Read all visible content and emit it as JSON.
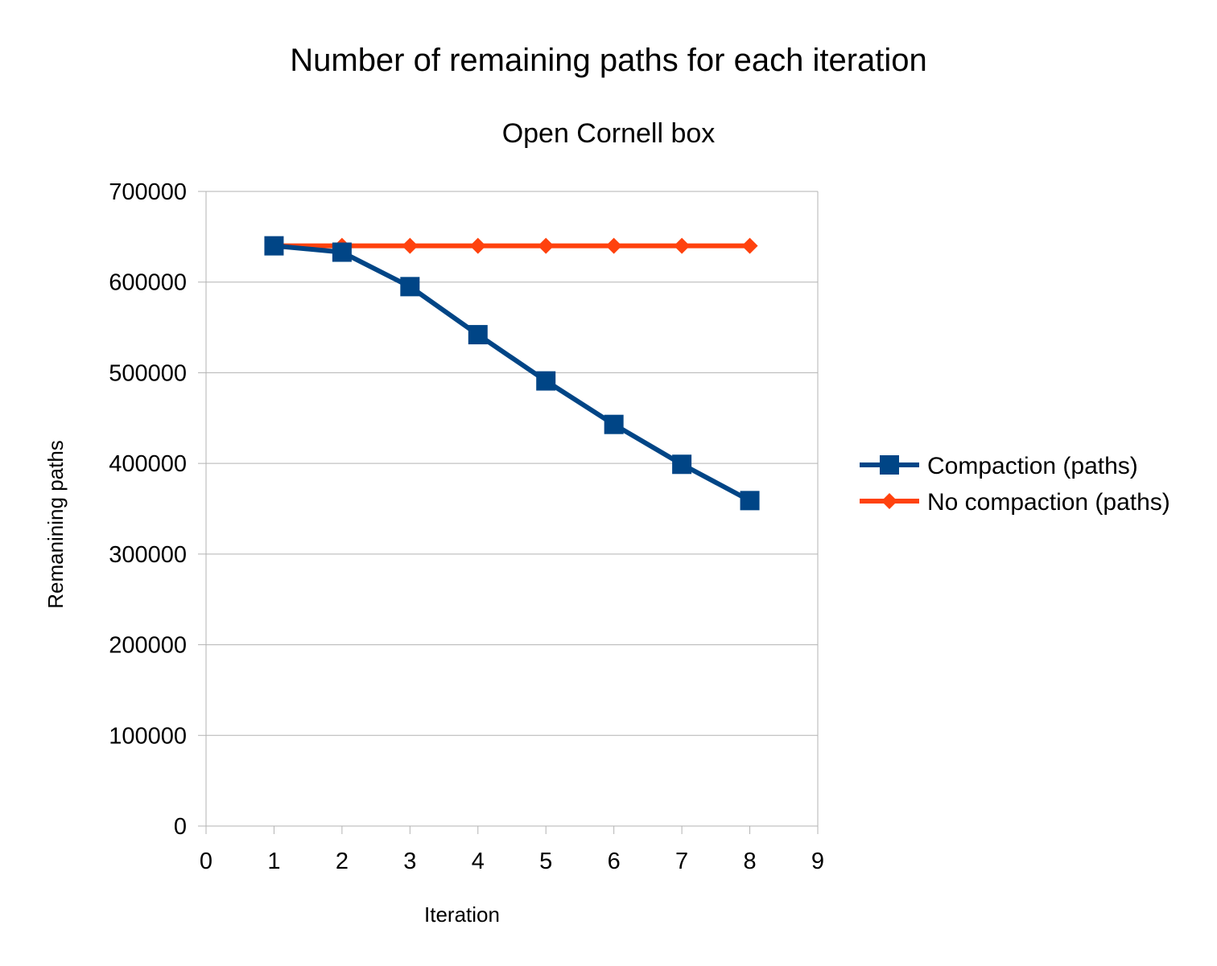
{
  "chart_data": {
    "type": "line",
    "title": "Number of remaining paths for each iteration",
    "subtitle": "Open Cornell box",
    "xlabel": "Iteration",
    "ylabel": "Remanining paths",
    "xlim": [
      0,
      9
    ],
    "ylim": [
      0,
      700000
    ],
    "x_ticks": [
      "0",
      "1",
      "2",
      "3",
      "4",
      "5",
      "6",
      "7",
      "8",
      "9"
    ],
    "y_ticks": [
      "0",
      "100000",
      "200000",
      "300000",
      "400000",
      "500000",
      "600000",
      "700000"
    ],
    "grid": true,
    "legend_position": "right",
    "x": [
      1,
      2,
      3,
      4,
      5,
      6,
      7,
      8
    ],
    "series": [
      {
        "name": "Compaction (paths)",
        "color": "#004586",
        "marker": "square",
        "values": [
          640000,
          633000,
          595000,
          542000,
          491000,
          443000,
          399000,
          359000
        ]
      },
      {
        "name": "No compaction (paths)",
        "color": "#ff420e",
        "marker": "diamond",
        "values": [
          640000,
          640000,
          640000,
          640000,
          640000,
          640000,
          640000,
          640000
        ]
      }
    ]
  }
}
